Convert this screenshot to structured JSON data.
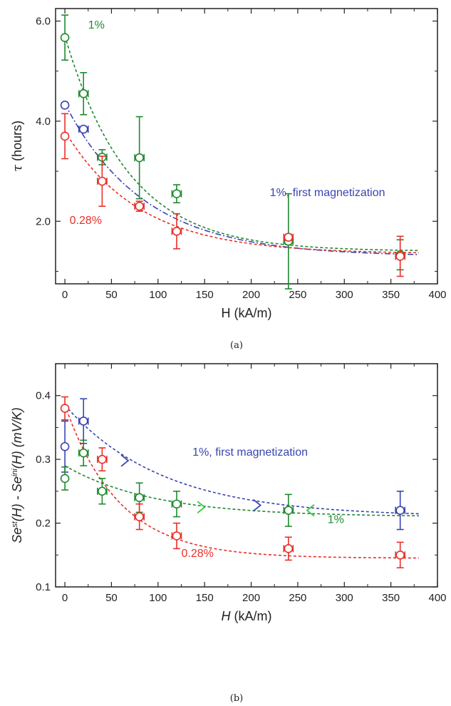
{
  "colors": {
    "red": "#e8302a",
    "green": "#1f8a2e",
    "blue": "#3a44b0",
    "arrow_green": "#2ecc40"
  },
  "chart_data": [
    {
      "type": "scatter",
      "panel_label": "(a)",
      "xlabel": "H (kA/m)",
      "ylabel_symbol": "τ",
      "ylabel_rest": " (hours)",
      "xlim": [
        -10,
        400
      ],
      "ylim": [
        0.75,
        6.25
      ],
      "xticks": [
        0,
        50,
        100,
        150,
        200,
        250,
        300,
        350,
        400
      ],
      "yticks": [
        2.0,
        4.0,
        6.0
      ],
      "ytick_labels": [
        "2.0",
        "4.0",
        "6.0"
      ],
      "grid": false,
      "annotations": [
        {
          "text": "1%",
          "x": 25,
          "y": 5.85,
          "color": "green"
        },
        {
          "text": "0.28%",
          "x": 5,
          "y": 1.95,
          "color": "red"
        },
        {
          "text": "1%, first magnetization",
          "x": 220,
          "y": 2.5,
          "color": "blue"
        }
      ],
      "series": [
        {
          "color": "green",
          "dash": "4 3",
          "x": [
            0,
            20,
            40,
            80,
            120,
            240,
            360
          ],
          "y": [
            5.67,
            4.55,
            3.28,
            3.27,
            2.55,
            1.6,
            1.33
          ],
          "yerr": [
            0.45,
            0.42,
            0.15,
            0.82,
            0.18,
            0.95,
            0.3
          ],
          "xerr": [
            0,
            5,
            5,
            5,
            5,
            5,
            0
          ],
          "fit": {
            "y0": 1.4,
            "A": 4.3,
            "t": 68
          }
        },
        {
          "color": "blue",
          "dash": "8 3 2 3",
          "x": [
            0,
            20
          ],
          "y": [
            4.32,
            3.84
          ],
          "yerr": [
            0.05,
            0.05
          ],
          "xerr": [
            0,
            5
          ],
          "fit": {
            "y0": 1.3,
            "A": 3.05,
            "t": 85
          }
        },
        {
          "color": "red",
          "dash": "4 3",
          "x": [
            0,
            40,
            80,
            120,
            240,
            360
          ],
          "y": [
            3.7,
            2.8,
            2.3,
            1.8,
            1.68,
            1.3
          ],
          "yerr": [
            0.45,
            0.5,
            0.1,
            0.35,
            0.06,
            0.4
          ],
          "xerr": [
            0,
            5,
            5,
            5,
            5,
            5
          ],
          "fit": {
            "y0": 1.35,
            "A": 2.45,
            "t": 80
          }
        }
      ]
    },
    {
      "type": "scatter",
      "panel_label": "(b)",
      "xlabel_symbol": "H",
      "xlabel_rest": " (kA/m)",
      "ylabel_parts": [
        "Se",
        "st",
        "(H) - Se",
        "ini",
        "(H) (mV/K)"
      ],
      "xlim": [
        -10,
        400
      ],
      "ylim": [
        0.1,
        0.45
      ],
      "xticks": [
        0,
        50,
        100,
        150,
        200,
        250,
        300,
        350,
        400
      ],
      "yticks": [
        0.1,
        0.2,
        0.3,
        0.4
      ],
      "ytick_labels": [
        "0.1",
        "0.2",
        "0.3",
        "0.4"
      ],
      "grid": false,
      "annotations": [
        {
          "text": "1%, first magnetization",
          "x": 137,
          "y": 0.306,
          "color": "blue"
        },
        {
          "text": "1%",
          "x": 282,
          "y": 0.2,
          "color": "green"
        },
        {
          "text": "0.28%",
          "x": 125,
          "y": 0.147,
          "color": "red"
        }
      ],
      "arrows": [
        {
          "x": 68,
          "y": 0.298,
          "color": "blue"
        },
        {
          "x": 210,
          "y": 0.228,
          "color": "blue"
        },
        {
          "x": 150,
          "y": 0.225,
          "color": "arrow_green"
        },
        {
          "x": 260,
          "y": 0.22,
          "color": "arrow_green",
          "reverse": true
        }
      ],
      "series": [
        {
          "color": "blue",
          "dash": "4 3",
          "x": [
            0,
            20,
            360
          ],
          "y": [
            0.32,
            0.36,
            0.22
          ],
          "yerr": [
            0.04,
            0.035,
            0.03
          ],
          "xerr": [
            0,
            5,
            5
          ],
          "fit": {
            "y0": 0.21,
            "A": 0.175,
            "t": 105
          }
        },
        {
          "color": "green",
          "dash": "4 3",
          "x": [
            0,
            20,
            40,
            80,
            120,
            240
          ],
          "y": [
            0.27,
            0.31,
            0.25,
            0.24,
            0.23,
            0.22
          ],
          "yerr": [
            0.018,
            0.02,
            0.02,
            0.023,
            0.02,
            0.025
          ],
          "xerr": [
            0,
            5,
            5,
            5,
            5,
            5
          ],
          "fit": {
            "y0": 0.21,
            "A": 0.08,
            "t": 95
          }
        },
        {
          "color": "red",
          "dash": "4 3",
          "x": [
            0,
            40,
            80,
            120,
            240,
            360
          ],
          "y": [
            0.38,
            0.3,
            0.21,
            0.18,
            0.16,
            0.15
          ],
          "yerr": [
            0.018,
            0.018,
            0.02,
            0.02,
            0.018,
            0.02
          ],
          "xerr": [
            0,
            5,
            5,
            5,
            5,
            5
          ],
          "fit": {
            "y0": 0.145,
            "A": 0.24,
            "t": 58
          }
        }
      ]
    }
  ]
}
